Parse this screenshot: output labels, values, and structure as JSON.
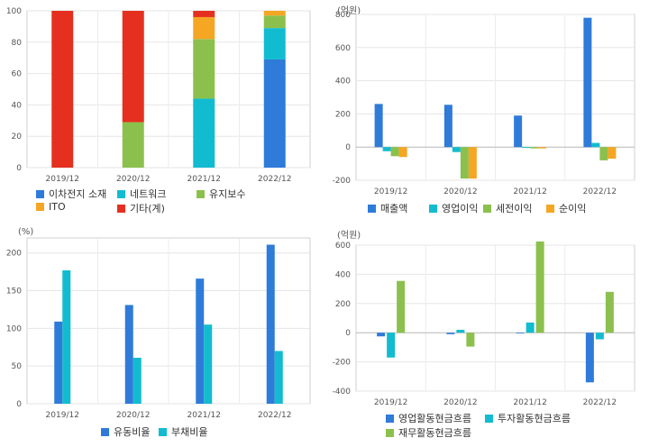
{
  "chart_data": [
    {
      "id": "tl",
      "type": "bar",
      "stacked": true,
      "unit": "",
      "categories": [
        "2019/12",
        "2020/12",
        "2021/12",
        "2022/12"
      ],
      "ylim": [
        0,
        100
      ],
      "yticks": [
        0,
        20,
        40,
        60,
        80,
        100
      ],
      "grid": true,
      "legend_position": "bottom",
      "series": [
        {
          "name": "이차전지 소재",
          "color": "#2e7bd9",
          "values": [
            0,
            0,
            0,
            69
          ]
        },
        {
          "name": "네트워크",
          "color": "#12bcd0",
          "values": [
            0,
            0,
            44,
            20
          ]
        },
        {
          "name": "유지보수",
          "color": "#8cc04d",
          "values": [
            0,
            29,
            38,
            8
          ]
        },
        {
          "name": "ITO",
          "color": "#f5a623",
          "values": [
            0,
            0,
            14,
            3
          ]
        },
        {
          "name": "기타(계)",
          "color": "#e53020",
          "values": [
            100,
            71,
            4,
            0
          ]
        }
      ]
    },
    {
      "id": "tr",
      "type": "bar",
      "stacked": false,
      "unit": "(억원)",
      "categories": [
        "2019/12",
        "2020/12",
        "2021/12",
        "2022/12"
      ],
      "ylim": [
        -200,
        800
      ],
      "yticks": [
        -200,
        0,
        200,
        400,
        600,
        800
      ],
      "grid": true,
      "legend_position": "bottom",
      "series": [
        {
          "name": "매출액",
          "color": "#2e7bd9",
          "values": [
            260,
            255,
            190,
            780
          ]
        },
        {
          "name": "영업이익",
          "color": "#12bcd0",
          "values": [
            -25,
            -30,
            -5,
            25
          ]
        },
        {
          "name": "세전이익",
          "color": "#8cc04d",
          "values": [
            -55,
            -190,
            -8,
            -80
          ]
        },
        {
          "name": "순이익",
          "color": "#f5a623",
          "values": [
            -60,
            -190,
            -8,
            -70
          ]
        }
      ]
    },
    {
      "id": "bl",
      "type": "bar",
      "stacked": false,
      "unit": "(%)",
      "categories": [
        "2019/12",
        "2020/12",
        "2021/12",
        "2022/12"
      ],
      "ylim": [
        0,
        220
      ],
      "yticks": [
        0,
        50,
        100,
        150,
        200
      ],
      "grid": true,
      "legend_position": "bottom",
      "series": [
        {
          "name": "유동비율",
          "color": "#2e7bd9",
          "values": [
            109,
            131,
            166,
            211
          ]
        },
        {
          "name": "부채비율",
          "color": "#12bcd0",
          "values": [
            177,
            61,
            105,
            70
          ]
        }
      ]
    },
    {
      "id": "br",
      "type": "bar",
      "stacked": false,
      "unit": "(억원)",
      "categories": [
        "2019/12",
        "2020/12",
        "2021/12",
        "2022/12"
      ],
      "ylim": [
        -400,
        600
      ],
      "yticks": [
        -400,
        -200,
        0,
        200,
        400,
        600
      ],
      "grid": true,
      "legend_position": "bottom",
      "series": [
        {
          "name": "영업활동현금흐름",
          "color": "#2e7bd9",
          "values": [
            -25,
            -10,
            -5,
            -340
          ]
        },
        {
          "name": "투자활동현금흐름",
          "color": "#12bcd0",
          "values": [
            -170,
            20,
            70,
            -45
          ]
        },
        {
          "name": "재무활동현금흐름",
          "color": "#8cc04d",
          "values": [
            355,
            -95,
            625,
            280
          ]
        }
      ]
    }
  ]
}
